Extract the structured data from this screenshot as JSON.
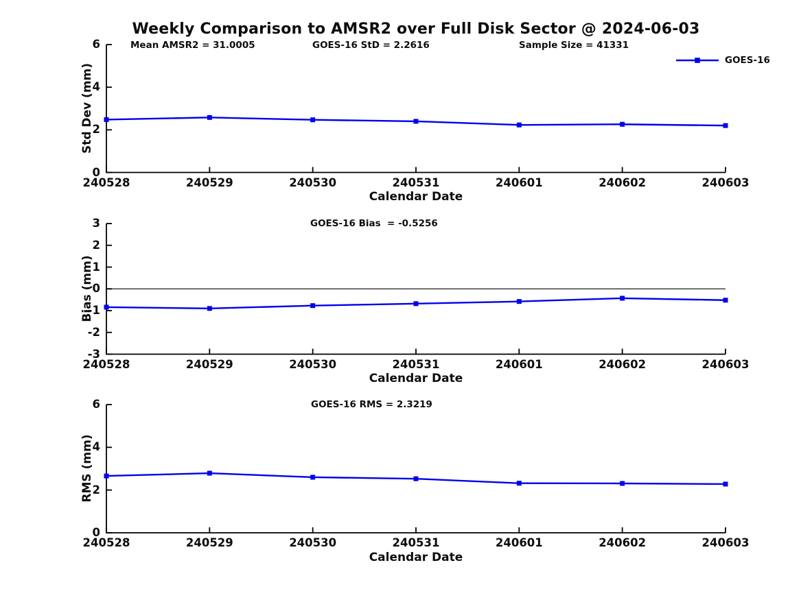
{
  "title": "Weekly Comparison to AMSR2 over Full Disk Sector @ 2024-06-03",
  "legend": {
    "label": "GOES-16",
    "position": "top-right",
    "boxed": false
  },
  "colors": {
    "series": "#0000EE",
    "zero_line": "#555555",
    "axis": "#000000",
    "text": "#0d0d0d",
    "background": "#FFFFFF"
  },
  "chart_data": [
    {
      "type": "line",
      "name": "std-dev",
      "ylabel": "Std Dev (mm)",
      "xlabel": "Calendar Date",
      "categories": [
        "240528",
        "240529",
        "240530",
        "240531",
        "240601",
        "240602",
        "240603"
      ],
      "series": [
        {
          "name": "GOES-16",
          "marker": "square",
          "values": [
            2.48,
            2.58,
            2.47,
            2.4,
            2.23,
            2.26,
            2.2
          ]
        }
      ],
      "ylim": [
        0,
        6
      ],
      "yticks": [
        0,
        2,
        4,
        6
      ],
      "grid": false,
      "zero_line": false,
      "annotations": [
        "Mean AMSR2 = 31.0005",
        "GOES-16 StD = 2.2616",
        "Sample Size = 41331"
      ]
    },
    {
      "type": "line",
      "name": "bias",
      "ylabel": "Bias (mm)",
      "xlabel": "Calendar Date",
      "categories": [
        "240528",
        "240529",
        "240530",
        "240531",
        "240601",
        "240602",
        "240603"
      ],
      "series": [
        {
          "name": "GOES-16",
          "marker": "square",
          "values": [
            -0.84,
            -0.9,
            -0.77,
            -0.68,
            -0.58,
            -0.43,
            -0.52
          ]
        }
      ],
      "ylim": [
        -3,
        3
      ],
      "yticks": [
        -3,
        -2,
        -1,
        0,
        1,
        2,
        3
      ],
      "grid": false,
      "zero_line": true,
      "annotations": [
        "GOES-16 Bias  = -0.5256"
      ]
    },
    {
      "type": "line",
      "name": "rms",
      "ylabel": "RMS (mm)",
      "xlabel": "Calendar Date",
      "categories": [
        "240528",
        "240529",
        "240530",
        "240531",
        "240601",
        "240602",
        "240603"
      ],
      "series": [
        {
          "name": "GOES-16",
          "marker": "square",
          "values": [
            2.66,
            2.79,
            2.6,
            2.53,
            2.32,
            2.31,
            2.28
          ]
        }
      ],
      "ylim": [
        0,
        6
      ],
      "yticks": [
        0,
        2,
        4,
        6
      ],
      "grid": false,
      "zero_line": false,
      "annotations": [
        "GOES-16 RMS = 2.3219"
      ]
    }
  ]
}
